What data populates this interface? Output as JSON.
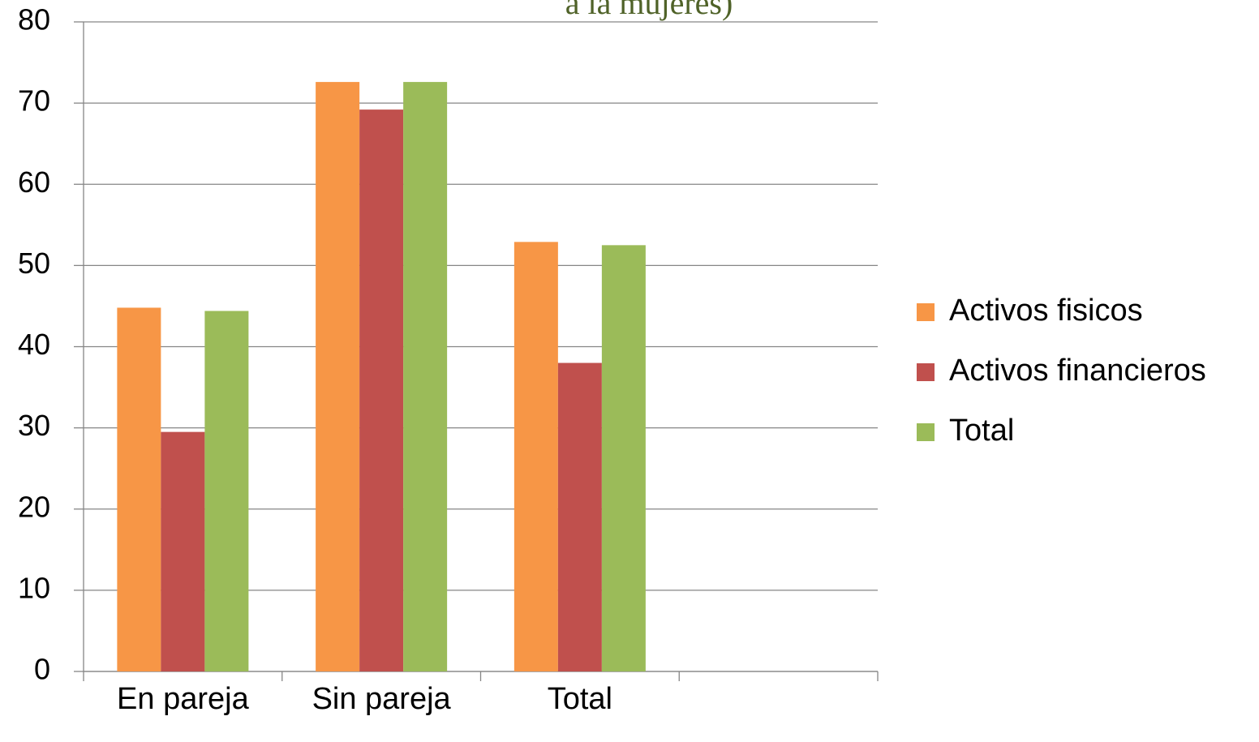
{
  "chart_data": {
    "type": "bar",
    "title": "a la mujeres)",
    "categories": [
      "En pareja",
      "Sin pareja",
      "Total",
      null
    ],
    "series": [
      {
        "name": "Activos fisicos",
        "color": "#f79646",
        "values": [
          44.8,
          72.6,
          52.9,
          null
        ]
      },
      {
        "name": "Activos financieros",
        "color": "#c0504d",
        "values": [
          29.5,
          69.2,
          38.0,
          null
        ]
      },
      {
        "name": "Total",
        "color": "#9bbb59",
        "values": [
          44.4,
          72.6,
          52.5,
          null
        ]
      }
    ],
    "ylim": [
      0,
      80
    ],
    "yticks": [
      0,
      10,
      20,
      30,
      40,
      50,
      60,
      70,
      80
    ],
    "grid": true,
    "legend": "right"
  }
}
